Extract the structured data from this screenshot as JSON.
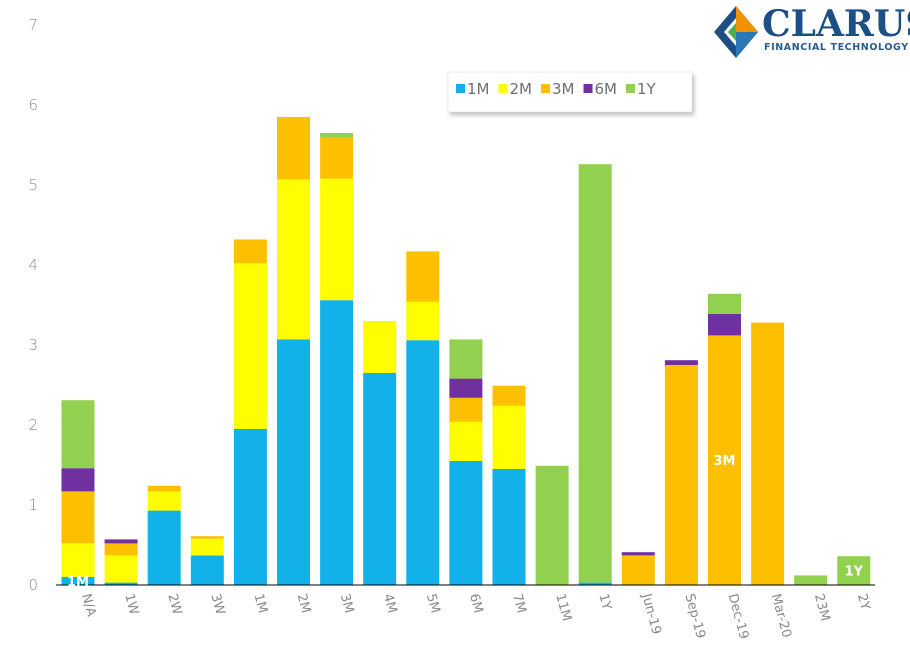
{
  "logo": {
    "name": "CLARUS",
    "tagline": "FINANCIAL TECHNOLOGY"
  },
  "colors": {
    "1M": "#12b1ea",
    "2M": "#fefe00",
    "3M": "#fdc000",
    "6M": "#7030a0",
    "1Y": "#92d050"
  },
  "chart_data": {
    "type": "bar",
    "stacked": true,
    "ylim": [
      0,
      7
    ],
    "yticks": [
      "0",
      "1",
      "2",
      "3",
      "4",
      "5",
      "6",
      "7"
    ],
    "grid": false,
    "legend_position": "top-right",
    "categories": [
      "N/A",
      "1W",
      "2W",
      "3W",
      "1M",
      "2M",
      "3M",
      "4M",
      "5M",
      "6M",
      "7M",
      "11M",
      "1Y",
      "Jun-19",
      "Sep-19",
      "Dec-19",
      "Mar-20",
      "23M",
      "2Y"
    ],
    "series": [
      {
        "name": "1M",
        "values": [
          0.1,
          0.03,
          0.93,
          0.37,
          1.95,
          3.07,
          3.56,
          2.65,
          3.06,
          1.55,
          1.45,
          0,
          0.03,
          0,
          0,
          0,
          0,
          0,
          0
        ]
      },
      {
        "name": "2M",
        "values": [
          0.42,
          0.34,
          0.24,
          0.21,
          2.07,
          2.0,
          1.52,
          0.65,
          0.48,
          0.49,
          0.79,
          0,
          0,
          0,
          0,
          0,
          0,
          0,
          0
        ]
      },
      {
        "name": "3M",
        "values": [
          0.65,
          0.15,
          0.07,
          0.03,
          0.3,
          0.78,
          0.52,
          0,
          0.63,
          0.3,
          0.25,
          0,
          0,
          0.37,
          2.75,
          3.12,
          3.28,
          0,
          0
        ]
      },
      {
        "name": "6M",
        "values": [
          0.29,
          0.05,
          0,
          0,
          0,
          0,
          0,
          0,
          0,
          0.24,
          0,
          0,
          0,
          0.04,
          0.06,
          0.27,
          0,
          0,
          0
        ]
      },
      {
        "name": "1Y",
        "values": [
          0.85,
          0,
          0,
          0,
          0,
          0,
          0.05,
          0,
          0,
          0.49,
          0,
          1.49,
          5.23,
          0,
          0,
          0.25,
          0,
          0.12,
          0.36
        ]
      }
    ],
    "annotations": [
      {
        "text": "1M",
        "category": "N/A",
        "series": "1M"
      },
      {
        "text": "3M",
        "category": "Dec-19",
        "series": "3M"
      },
      {
        "text": "1Y",
        "category": "2Y",
        "series": "1Y"
      }
    ]
  }
}
